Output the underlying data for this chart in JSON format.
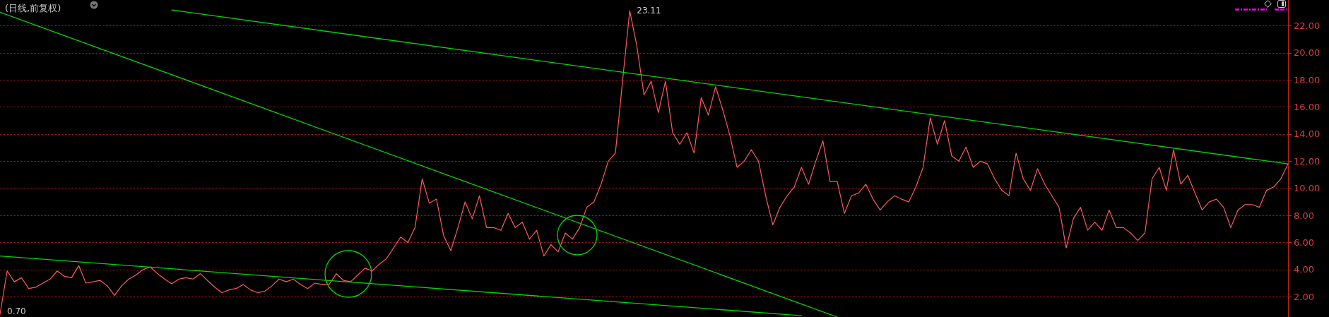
{
  "chart_data": {
    "type": "line",
    "title": "(日线,前复权)",
    "categories": [
      null,
      null,
      null,
      null,
      null,
      null,
      null,
      null,
      null,
      null,
      null,
      null,
      null,
      null,
      null,
      null,
      null,
      null,
      null,
      null,
      null,
      null,
      null,
      null,
      null,
      null,
      null,
      null,
      null,
      null,
      null,
      null,
      null,
      null,
      null,
      null,
      null,
      null,
      null,
      null,
      null,
      null,
      null,
      null,
      null,
      null,
      null,
      null,
      null,
      null,
      null,
      null,
      null,
      null,
      null,
      null,
      null,
      null,
      null,
      null,
      null,
      null,
      null,
      null,
      null,
      null,
      null,
      null,
      null,
      null,
      null,
      null,
      null,
      null,
      null,
      null,
      null,
      null,
      null,
      null,
      null,
      null,
      null,
      null,
      null,
      null,
      null,
      null,
      null,
      null,
      null,
      null,
      null,
      null,
      null,
      null,
      null,
      null,
      null,
      null,
      null,
      null,
      null,
      null,
      null,
      null,
      null,
      null,
      null,
      null,
      null,
      null,
      null,
      null,
      null,
      null,
      null,
      null,
      null,
      null,
      null,
      null,
      null,
      null,
      null,
      null,
      null,
      null,
      null,
      null,
      null,
      null,
      null,
      null,
      null,
      null,
      null,
      null,
      null,
      null,
      null,
      null,
      null,
      null,
      null,
      null,
      null,
      null,
      null,
      null,
      null,
      null,
      null,
      null,
      null,
      null,
      null,
      null,
      null,
      null,
      null,
      null,
      null,
      null,
      null,
      null,
      null,
      null,
      null,
      null,
      null,
      null,
      null,
      null,
      null,
      null,
      null,
      null,
      null,
      null,
      null
    ],
    "series": [
      {
        "color": "#ff5a5a",
        "values": [
          0.7,
          3.9,
          3.1,
          3.4,
          2.6,
          2.7,
          3.0,
          3.3,
          3.9,
          3.5,
          3.4,
          4.3,
          3.0,
          3.1,
          3.2,
          2.8,
          2.1,
          2.8,
          3.3,
          3.6,
          4.0,
          4.2,
          3.7,
          3.3,
          2.95,
          3.3,
          3.4,
          3.3,
          3.7,
          3.2,
          2.7,
          2.3,
          2.5,
          2.6,
          2.9,
          2.5,
          2.3,
          2.4,
          2.8,
          3.3,
          3.1,
          3.3,
          2.9,
          2.6,
          3.0,
          2.9,
          2.9,
          3.7,
          3.2,
          3.1,
          3.6,
          4.1,
          3.9,
          4.4,
          4.8,
          5.6,
          6.4,
          6.0,
          7.1,
          10.7,
          8.9,
          9.2,
          6.5,
          5.4,
          7.1,
          9.0,
          7.75,
          9.45,
          7.1,
          7.1,
          6.9,
          8.15,
          7.1,
          7.5,
          6.25,
          6.9,
          5.0,
          5.85,
          5.3,
          6.7,
          6.25,
          7.1,
          8.6,
          9.0,
          10.3,
          12.0,
          12.6,
          17.9,
          23.11,
          20.5,
          16.9,
          17.9,
          15.6,
          17.9,
          14.1,
          13.25,
          14.1,
          12.6,
          16.7,
          15.4,
          17.5,
          15.8,
          13.9,
          11.55,
          12.0,
          12.85,
          12.0,
          9.45,
          7.3,
          8.6,
          9.45,
          10.1,
          11.55,
          10.3,
          12.0,
          13.5,
          10.5,
          10.5,
          8.15,
          9.45,
          9.65,
          10.3,
          9.2,
          8.4,
          9.0,
          9.45,
          9.2,
          9.0,
          10.1,
          11.55,
          15.2,
          13.25,
          15.0,
          12.4,
          12.0,
          13.05,
          11.55,
          12.0,
          11.8,
          10.7,
          9.85,
          9.45,
          12.6,
          10.7,
          9.85,
          11.45,
          10.3,
          9.45,
          8.6,
          5.6,
          7.75,
          8.6,
          6.9,
          7.5,
          6.9,
          8.4,
          7.1,
          7.1,
          6.7,
          6.15,
          6.7,
          10.7,
          11.55,
          9.85,
          12.85,
          10.3,
          10.95,
          9.65,
          8.4,
          9.0,
          9.2,
          8.6,
          7.1,
          8.4,
          8.8,
          8.8,
          8.6,
          9.85,
          10.1,
          10.7,
          11.8
        ]
      },
      {
        "color": "#00d800",
        "values": [
          23.0,
          null,
          null,
          null,
          null,
          null,
          null,
          null,
          null,
          null,
          null,
          null,
          null,
          null,
          null,
          null,
          null,
          null,
          null,
          null,
          null,
          null,
          null,
          null,
          null,
          null,
          null,
          null,
          null,
          null,
          null,
          null,
          null,
          null,
          null,
          null,
          null,
          null,
          null,
          null,
          null,
          null,
          null,
          null,
          null,
          null,
          null,
          null,
          null,
          null,
          null,
          null,
          null,
          null,
          null,
          null,
          null,
          null,
          null,
          null,
          null,
          null,
          null,
          null,
          null,
          null,
          null,
          null,
          null,
          null,
          null,
          null,
          null,
          null,
          null,
          null,
          null,
          null,
          null,
          null,
          null,
          null,
          null,
          null,
          null,
          null,
          null,
          null,
          null,
          null,
          null,
          null,
          null,
          null,
          null,
          null,
          null,
          null,
          null,
          null,
          null,
          null,
          null,
          null,
          null,
          null,
          null,
          null,
          null,
          null,
          null,
          null,
          null,
          null,
          null,
          null,
          null,
          0.5,
          null,
          null,
          null,
          null,
          null,
          null,
          null,
          null,
          null,
          null,
          null,
          null,
          null,
          null,
          null,
          null,
          null,
          null,
          null,
          null,
          null,
          null,
          null,
          null,
          null,
          null,
          null,
          null,
          null,
          null,
          null,
          null,
          null,
          null,
          null,
          null,
          null,
          null,
          null,
          null,
          null,
          null,
          null,
          null,
          null,
          null,
          null,
          null,
          null,
          null,
          null,
          null,
          null,
          null,
          null,
          null,
          null,
          null,
          null,
          null,
          null,
          null,
          null
        ]
      },
      {
        "color": "#00d800",
        "values": [
          null,
          null,
          null,
          null,
          null,
          null,
          null,
          null,
          null,
          null,
          null,
          null,
          null,
          null,
          null,
          null,
          null,
          null,
          null,
          null,
          null,
          null,
          null,
          null,
          23.16,
          null,
          null,
          null,
          null,
          null,
          null,
          null,
          null,
          null,
          null,
          null,
          null,
          null,
          null,
          null,
          null,
          null,
          null,
          null,
          null,
          null,
          null,
          null,
          null,
          null,
          null,
          null,
          null,
          null,
          null,
          null,
          null,
          null,
          null,
          null,
          null,
          null,
          null,
          null,
          null,
          null,
          null,
          null,
          null,
          null,
          null,
          null,
          null,
          null,
          null,
          null,
          null,
          null,
          null,
          null,
          null,
          null,
          null,
          null,
          null,
          null,
          null,
          null,
          null,
          null,
          null,
          null,
          null,
          null,
          null,
          null,
          null,
          null,
          null,
          null,
          null,
          null,
          null,
          null,
          null,
          null,
          null,
          null,
          null,
          null,
          null,
          null,
          null,
          null,
          null,
          null,
          null,
          null,
          null,
          null,
          null,
          null,
          null,
          null,
          null,
          null,
          null,
          null,
          null,
          null,
          null,
          null,
          null,
          null,
          null,
          null,
          null,
          null,
          null,
          null,
          null,
          null,
          null,
          null,
          null,
          null,
          null,
          null,
          null,
          null,
          null,
          null,
          null,
          null,
          null,
          null,
          null,
          null,
          null,
          null,
          null,
          null,
          null,
          null,
          null,
          null,
          null,
          null,
          null,
          null,
          null,
          null,
          null,
          null,
          null,
          null,
          null,
          null,
          null,
          null,
          11.8
        ]
      },
      {
        "color": "#00d800",
        "values": [
          5.0,
          null,
          null,
          null,
          null,
          null,
          null,
          null,
          null,
          null,
          null,
          null,
          null,
          null,
          null,
          null,
          null,
          null,
          null,
          null,
          null,
          null,
          null,
          null,
          null,
          null,
          null,
          null,
          null,
          null,
          null,
          null,
          null,
          null,
          null,
          null,
          null,
          null,
          null,
          null,
          null,
          null,
          null,
          null,
          null,
          null,
          null,
          null,
          null,
          null,
          null,
          null,
          null,
          null,
          null,
          null,
          null,
          null,
          null,
          null,
          null,
          null,
          null,
          null,
          null,
          null,
          null,
          null,
          null,
          null,
          null,
          null,
          null,
          null,
          null,
          null,
          null,
          null,
          null,
          null,
          null,
          null,
          null,
          null,
          null,
          null,
          null,
          null,
          null,
          null,
          null,
          null,
          null,
          null,
          null,
          null,
          null,
          null,
          null,
          null,
          null,
          null,
          null,
          null,
          null,
          null,
          null,
          null,
          null,
          null,
          null,
          null,
          0.6,
          null,
          null,
          null,
          null,
          null,
          null,
          null,
          null,
          null,
          null,
          null,
          null,
          null,
          null,
          null,
          null,
          null,
          null,
          null,
          null,
          null,
          null,
          null,
          null,
          null,
          null,
          null,
          null,
          null,
          null,
          null,
          null,
          null,
          null,
          null,
          null,
          null,
          null,
          null,
          null,
          null,
          null,
          null,
          null,
          null,
          null,
          null,
          null,
          null,
          null,
          null,
          null,
          null,
          null,
          null,
          null,
          null,
          null,
          null,
          null,
          null,
          null,
          null,
          null,
          null,
          null,
          null,
          null
        ]
      }
    ],
    "annotations": [
      "23.11",
      "0.70"
    ],
    "ylim": [
      0.5,
      23.9
    ],
    "yticks": [
      {
        "value": 2,
        "label": "2.00"
      },
      {
        "value": 4,
        "label": "4.00"
      },
      {
        "value": 6,
        "label": "6.00"
      },
      {
        "value": 8,
        "label": "8.00"
      },
      {
        "value": 10,
        "label": "10.00"
      },
      {
        "value": 12,
        "label": "12.00"
      },
      {
        "value": 14,
        "label": "14.00"
      },
      {
        "value": 16,
        "label": "16.00"
      },
      {
        "value": 18,
        "label": "18.00"
      },
      {
        "value": 20,
        "label": "20.00"
      },
      {
        "value": 22,
        "label": "22.00"
      }
    ],
    "grid": "y",
    "tick_labels": "y",
    "marker": "none",
    "line_style": "solid"
  }
}
